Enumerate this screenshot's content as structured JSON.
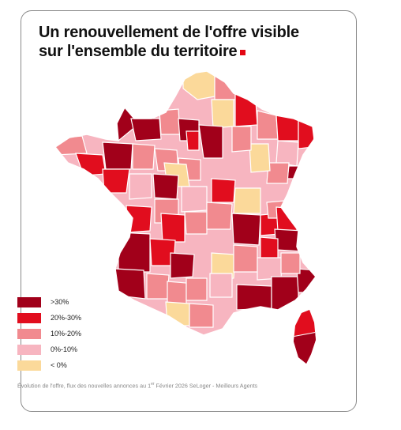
{
  "title": {
    "line1": "Un renouvellement de l'offre visible",
    "line2": "sur l'ensemble du territoire"
  },
  "colors": {
    "over30": "#a1001a",
    "from20to30": "#e10d1e",
    "from10to20": "#f18a8f",
    "from0to10": "#f7b5c0",
    "negative": "#fbd99a",
    "accent": "#e30613"
  },
  "legend": [
    {
      "label": ">30%",
      "color": "#a1001a"
    },
    {
      "label": "20%-30%",
      "color": "#e10d1e"
    },
    {
      "label": "10%-20%",
      "color": "#f18a8f"
    },
    {
      "label": "0%-10%",
      "color": "#f7b5c0"
    },
    {
      "label": "< 0%",
      "color": "#fbd99a"
    }
  ],
  "footer": {
    "prefix": "Évolution de l'offre, flux des nouvelles annonces au 1",
    "sup": "er",
    "suffix": " Février 2026 SeLoger - Meilleurs Agents"
  }
}
